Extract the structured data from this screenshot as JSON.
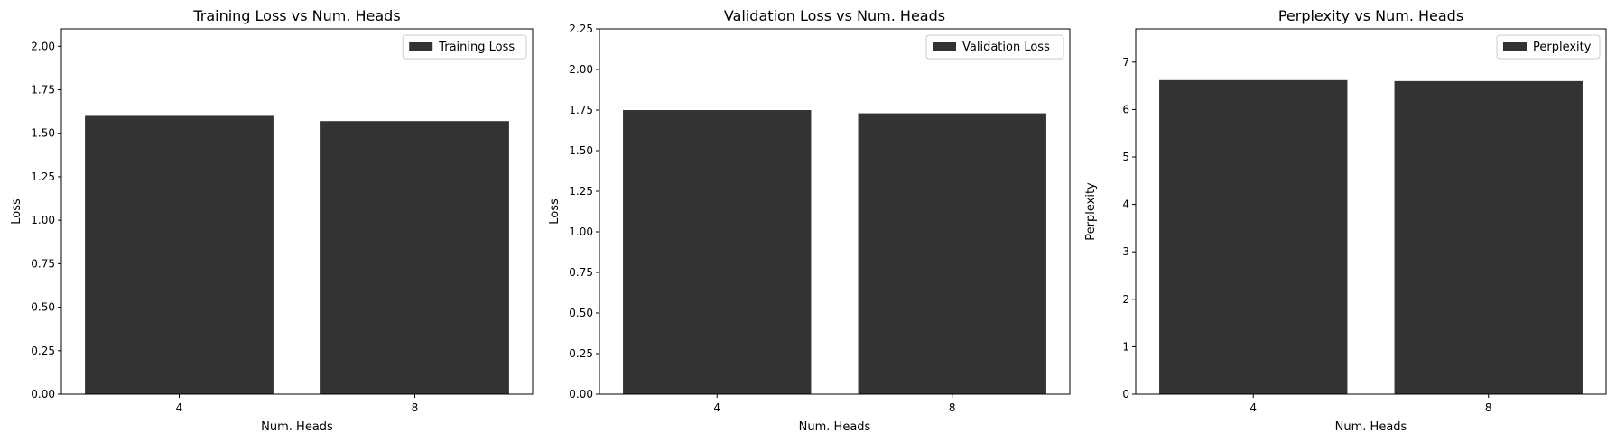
{
  "chart_data": [
    {
      "type": "bar",
      "title": "Training Loss vs Num. Heads",
      "xlabel": "Num. Heads",
      "ylabel": "Loss",
      "categories": [
        "4",
        "8"
      ],
      "series": [
        {
          "name": "Training Loss",
          "values": [
            1.6,
            1.57
          ]
        }
      ],
      "ylim": [
        0,
        2.1
      ],
      "yticks": [
        "0.00",
        "0.25",
        "0.50",
        "0.75",
        "1.00",
        "1.25",
        "1.50",
        "1.75",
        "2.00"
      ],
      "legend": "top-right",
      "grid": false,
      "bar_color": "#333333"
    },
    {
      "type": "bar",
      "title": "Validation Loss vs Num. Heads",
      "xlabel": "Num. Heads",
      "ylabel": "Loss",
      "categories": [
        "4",
        "8"
      ],
      "series": [
        {
          "name": "Validation Loss",
          "values": [
            1.75,
            1.73
          ]
        }
      ],
      "ylim": [
        0,
        2.25
      ],
      "yticks": [
        "0.00",
        "0.25",
        "0.50",
        "0.75",
        "1.00",
        "1.25",
        "1.50",
        "1.75",
        "2.00",
        "2.25"
      ],
      "legend": "top-right",
      "grid": false,
      "bar_color": "#333333"
    },
    {
      "type": "bar",
      "title": "Perplexity vs Num. Heads",
      "xlabel": "Num. Heads",
      "ylabel": "Perplexity",
      "categories": [
        "4",
        "8"
      ],
      "series": [
        {
          "name": "Perplexity",
          "values": [
            6.62,
            6.6
          ]
        }
      ],
      "ylim": [
        0,
        7.7
      ],
      "yticks": [
        "0",
        "1",
        "2",
        "3",
        "4",
        "5",
        "6",
        "7"
      ],
      "legend": "top-right",
      "grid": false,
      "bar_color": "#333333"
    }
  ]
}
